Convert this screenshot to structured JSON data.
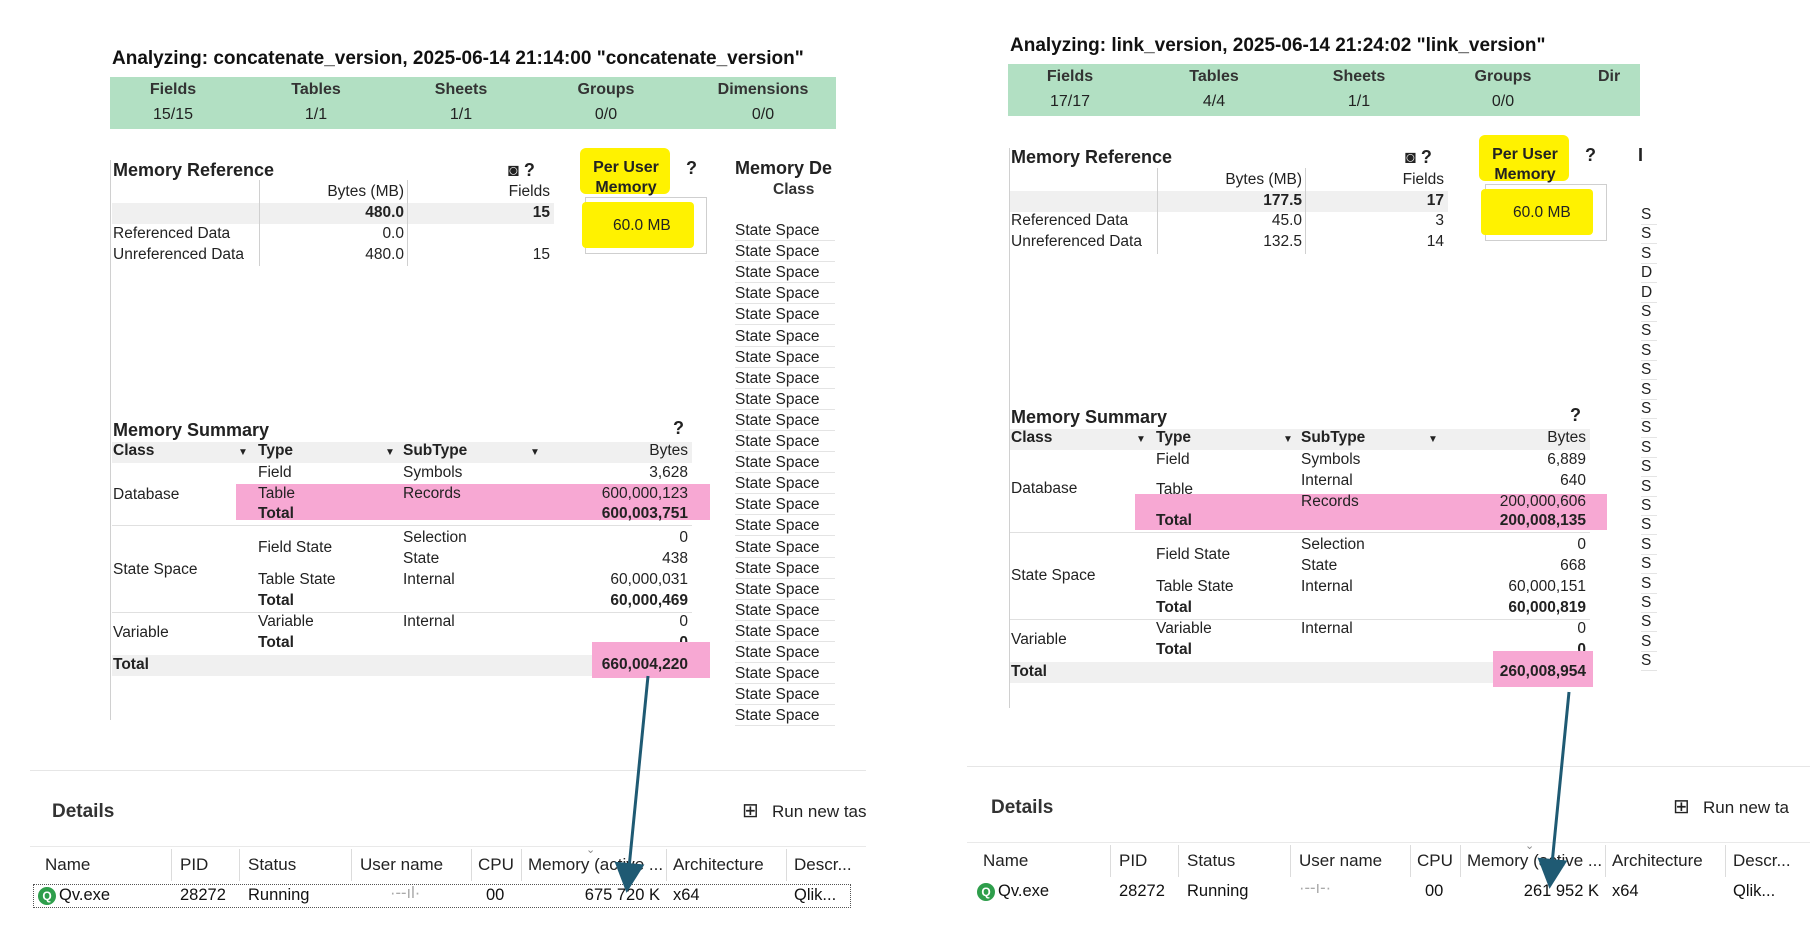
{
  "left": {
    "title": "Analyzing: concatenate_version, 2025-06-14 21:14:00  \"concatenate_version\"",
    "summary": {
      "headers": [
        "Fields",
        "Tables",
        "Sheets",
        "Groups",
        "Dimensions"
      ],
      "values": [
        "15/15",
        "1/1",
        "1/1",
        "0/0",
        "0/0"
      ]
    },
    "memory_reference": {
      "title": "Memory Reference",
      "icons": "◙ ?",
      "col_bytes": "Bytes (MB)",
      "col_fields": "Fields",
      "total_bytes": "480.0",
      "total_fields": "15",
      "rows": [
        {
          "label": "Referenced Data",
          "bytes": "0.0",
          "fields": ""
        },
        {
          "label": "Unreferenced Data",
          "bytes": "480.0",
          "fields": "15"
        }
      ]
    },
    "per_user": {
      "label": "Per User Memory",
      "help": "?",
      "value": "60.0 MB"
    },
    "memory_detail": {
      "title": "Memory De",
      "col_class": "Class",
      "rows": [
        "State Space",
        "State Space",
        "State Space",
        "State Space",
        "State Space",
        "State Space",
        "State Space",
        "State Space",
        "State Space",
        "State Space",
        "State Space",
        "State Space",
        "State Space",
        "State Space",
        "State Space",
        "State Space",
        "State Space",
        "State Space",
        "State Space",
        "State Space",
        "State Space",
        "State Space",
        "State Space",
        "State Space"
      ]
    },
    "memory_summary": {
      "title": "Memory Summary",
      "help": "?",
      "col_class": "Class",
      "col_type": "Type",
      "col_subtype": "SubType",
      "col_bytes": "Bytes",
      "database": "Database",
      "db_rows": [
        {
          "type": "Field",
          "subtype": "Symbols",
          "bytes": "3,628"
        },
        {
          "type": "Table",
          "subtype": "Records",
          "bytes": "600,000,123"
        },
        {
          "type": "Total",
          "subtype": "",
          "bytes": "600,003,751"
        }
      ],
      "state_space": "State Space",
      "ss_field_state": "Field State",
      "ss_selection": "Selection",
      "ss_selection_bytes": "0",
      "ss_state": "State",
      "ss_state_bytes": "438",
      "ss_table_state": "Table State",
      "ss_internal": "Internal",
      "ss_internal_bytes": "60,000,031",
      "ss_total": "Total",
      "ss_total_bytes": "60,000,469",
      "variable": "Variable",
      "var_type": "Variable",
      "var_subtype": "Internal",
      "var_bytes": "0",
      "var_total": "Total",
      "var_total_bytes": "0",
      "grand_total": "Total",
      "grand_total_bytes": "660,004,220"
    },
    "details": {
      "title": "Details",
      "run_label": "Run new tas",
      "headers": [
        "Name",
        "PID",
        "Status",
        "User name",
        "CPU",
        "Memory (active ...",
        "Architecture",
        "Descr..."
      ],
      "row": {
        "name": "Qv.exe",
        "pid": "28272",
        "status": "Running",
        "user": "·-‐ıl·",
        "cpu": "00",
        "memory": "675 720 K",
        "arch": "x64",
        "desc": "Qlik..."
      }
    }
  },
  "right": {
    "title": "Analyzing: link_version, 2025-06-14 21:24:02  \"link_version\"",
    "summary": {
      "headers": [
        "Fields",
        "Tables",
        "Sheets",
        "Groups",
        "Dir"
      ],
      "values": [
        "17/17",
        "4/4",
        "1/1",
        "0/0",
        ""
      ]
    },
    "memory_reference": {
      "title": "Memory Reference",
      "icons": "◙ ?",
      "col_bytes": "Bytes (MB)",
      "col_fields": "Fields",
      "total_bytes": "177.5",
      "total_fields": "17",
      "rows": [
        {
          "label": "Referenced Data",
          "bytes": "45.0",
          "fields": "3"
        },
        {
          "label": "Unreferenced Data",
          "bytes": "132.5",
          "fields": "14"
        }
      ]
    },
    "per_user": {
      "label": "Per User Memory",
      "help": "?",
      "value": "60.0 MB"
    },
    "memory_detail": {
      "title": "I",
      "rows": [
        "S",
        "S",
        "S",
        "D",
        "D",
        "S",
        "S",
        "S",
        "S",
        "S",
        "S",
        "S",
        "S",
        "S",
        "S",
        "S",
        "S",
        "S",
        "S",
        "S",
        "S",
        "S",
        "S",
        "S"
      ]
    },
    "memory_summary": {
      "title": "Memory Summary",
      "help": "?",
      "col_class": "Class",
      "col_type": "Type",
      "col_subtype": "SubType",
      "col_bytes": "Bytes",
      "database": "Database",
      "db_field": "Field",
      "db_symbols": "Symbols",
      "db_symbols_bytes": "6,889",
      "db_table": "Table",
      "db_internal": "Internal",
      "db_internal_bytes": "640",
      "db_records": "Records",
      "db_records_bytes": "200,000,606",
      "db_total": "Total",
      "db_total_bytes": "200,008,135",
      "state_space": "State Space",
      "ss_field_state": "Field State",
      "ss_selection": "Selection",
      "ss_selection_bytes": "0",
      "ss_state": "State",
      "ss_state_bytes": "668",
      "ss_table_state": "Table State",
      "ss_internal": "Internal",
      "ss_internal_bytes": "60,000,151",
      "ss_total": "Total",
      "ss_total_bytes": "60,000,819",
      "variable": "Variable",
      "var_type": "Variable",
      "var_subtype": "Internal",
      "var_bytes": "0",
      "var_total": "Total",
      "var_total_bytes": "0",
      "grand_total": "Total",
      "grand_total_bytes": "260,008,954"
    },
    "details": {
      "title": "Details",
      "run_label": "Run new ta",
      "headers": [
        "Name",
        "PID",
        "Status",
        "User name",
        "CPU",
        "Memory (active ...",
        "Architecture",
        "Descr..."
      ],
      "row": {
        "name": "Qv.exe",
        "pid": "28272",
        "status": "Running",
        "user": "·‐‐ı‐·",
        "cpu": "00",
        "memory": "261 952 K",
        "arch": "x64",
        "desc": "Qlik..."
      }
    }
  },
  "colors": {
    "summary_bar": "#b2e0c3",
    "highlight_pink": "#f7a8d3",
    "highlight_yellow": "#fff200",
    "arrow": "#1f5a73"
  }
}
